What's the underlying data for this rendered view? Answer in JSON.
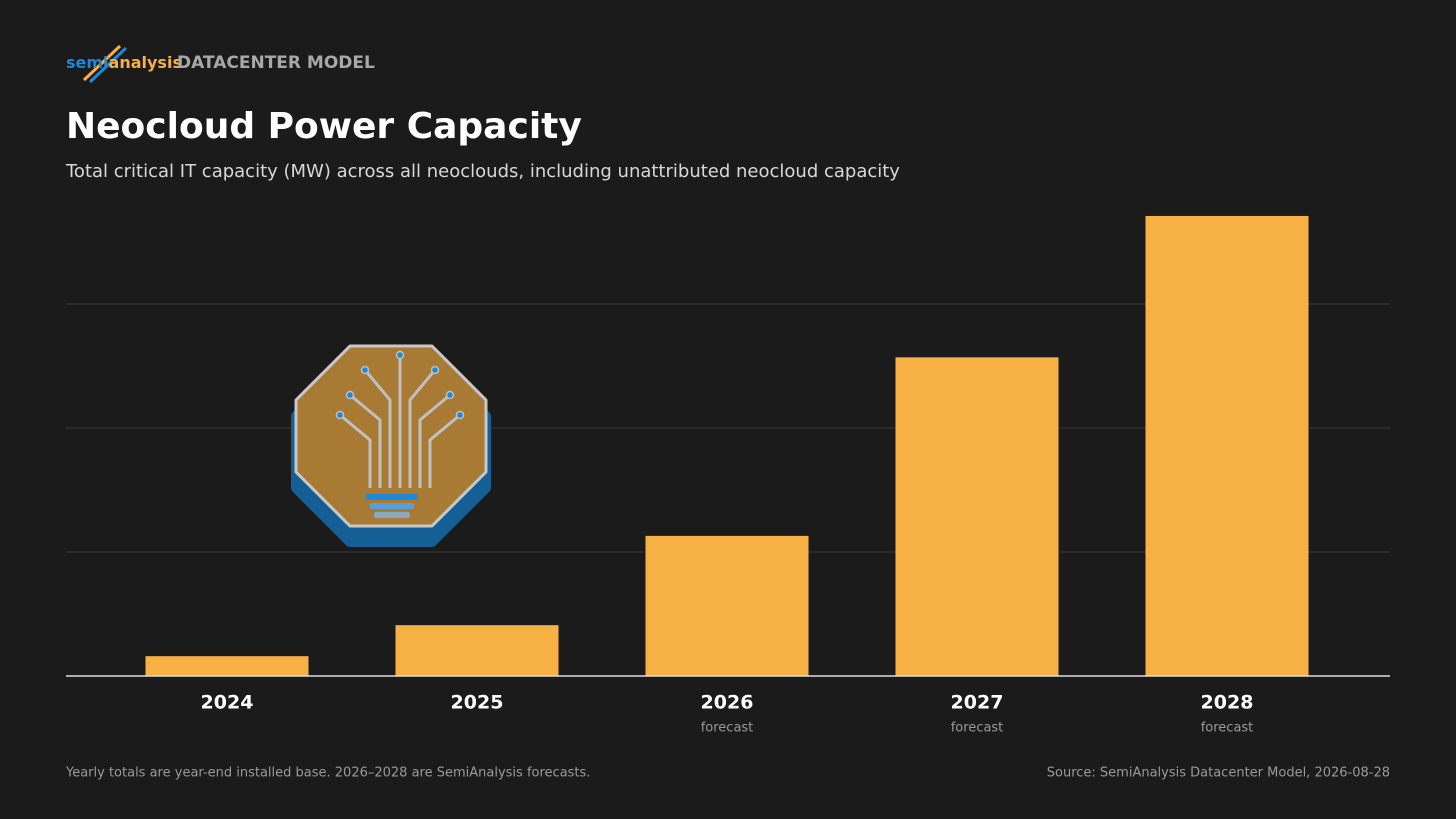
{
  "brand": {
    "logo_left": "semi",
    "logo_right": "analysis",
    "section": "DATACENTER MODEL"
  },
  "chart_data": {
    "type": "bar",
    "title": "Neocloud Power Capacity",
    "subtitle": "Total critical IT capacity (MW) across all neoclouds, including unattributed neocloud capacity",
    "categories": [
      "2024",
      "2025",
      "2026",
      "2027",
      "2028"
    ],
    "category_notes": [
      null,
      null,
      "forecast",
      "forecast",
      "forecast"
    ],
    "values": [
      0.16,
      0.41,
      1.13,
      2.57,
      3.71
    ],
    "color": "#f7b043",
    "ylim": [
      0,
      4
    ],
    "yticks": [
      0,
      1,
      2,
      3
    ],
    "grid": true,
    "footnote": "Yearly totals are year-end installed base. 2026–2028 are SemiAnalysis forecasts.",
    "source": "Source: SemiAnalysis Datacenter Model, 2026-08-28"
  }
}
